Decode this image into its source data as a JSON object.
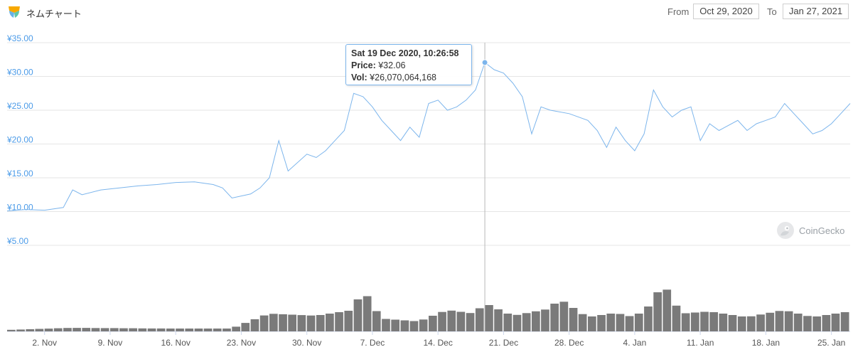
{
  "header": {
    "title": "ネムチャート",
    "from_label": "From",
    "from_value": "Oct 29, 2020",
    "to_label": "To",
    "to_value": "Jan 27, 2021"
  },
  "tooltip": {
    "date": "Sat 19 Dec 2020, 10:26:58",
    "price_label": "Price:",
    "price_value": "¥32.06",
    "vol_label": "Vol:",
    "vol_value": "¥26,070,064,168"
  },
  "watermark": {
    "text": "CoinGecko"
  },
  "colors": {
    "price_line": "#7cb5ec",
    "volume": "#7a7a7a",
    "axis_text": "#4c9be8",
    "grid": "#e6e6e6"
  },
  "chart_data": {
    "type": "line",
    "y_ticks": [
      "¥5.00",
      "¥10.00",
      "¥15.00",
      "¥20.00",
      "¥25.00",
      "¥30.00",
      "¥35.00"
    ],
    "y_tick_values": [
      5,
      10,
      15,
      20,
      25,
      30,
      35
    ],
    "ylim": [
      5,
      35
    ],
    "x_ticks": [
      "2. Nov",
      "9. Nov",
      "16. Nov",
      "23. Nov",
      "30. Nov",
      "7. Dec",
      "14. Dec",
      "21. Dec",
      "28. Dec",
      "4. Jan",
      "11. Jan",
      "18. Jan",
      "25. Jan"
    ],
    "x_tick_days": [
      "2020-11-02",
      "2020-11-09",
      "2020-11-16",
      "2020-11-23",
      "2020-11-30",
      "2020-12-07",
      "2020-12-14",
      "2020-12-21",
      "2020-12-28",
      "2021-01-04",
      "2021-01-11",
      "2021-01-18",
      "2021-01-25"
    ],
    "xlim": [
      "2020-10-29",
      "2021-01-27"
    ],
    "price_series": {
      "x": [
        "2020-10-29",
        "2020-10-31",
        "2020-11-02",
        "2020-11-04",
        "2020-11-05",
        "2020-11-06",
        "2020-11-08",
        "2020-11-10",
        "2020-11-12",
        "2020-11-14",
        "2020-11-16",
        "2020-11-18",
        "2020-11-20",
        "2020-11-21",
        "2020-11-22",
        "2020-11-24",
        "2020-11-25",
        "2020-11-26",
        "2020-11-27",
        "2020-11-28",
        "2020-11-30",
        "2020-12-01",
        "2020-12-02",
        "2020-12-03",
        "2020-12-04",
        "2020-12-05",
        "2020-12-06",
        "2020-12-07",
        "2020-12-08",
        "2020-12-09",
        "2020-12-10",
        "2020-12-11",
        "2020-12-12",
        "2020-12-13",
        "2020-12-14",
        "2020-12-15",
        "2020-12-16",
        "2020-12-17",
        "2020-12-18",
        "2020-12-19",
        "2020-12-20",
        "2020-12-21",
        "2020-12-22",
        "2020-12-23",
        "2020-12-24",
        "2020-12-25",
        "2020-12-26",
        "2020-12-28",
        "2020-12-30",
        "2020-12-31",
        "2021-01-01",
        "2021-01-02",
        "2021-01-03",
        "2021-01-04",
        "2021-01-05",
        "2021-01-06",
        "2021-01-07",
        "2021-01-08",
        "2021-01-09",
        "2021-01-10",
        "2021-01-11",
        "2021-01-12",
        "2021-01-13",
        "2021-01-15",
        "2021-01-16",
        "2021-01-17",
        "2021-01-18",
        "2021-01-19",
        "2021-01-20",
        "2021-01-21",
        "2021-01-22",
        "2021-01-23",
        "2021-01-24",
        "2021-01-25",
        "2021-01-26",
        "2021-01-27"
      ],
      "y": [
        10.1,
        10.3,
        10.2,
        10.6,
        13.2,
        12.5,
        13.2,
        13.5,
        13.8,
        14.0,
        14.3,
        14.4,
        14.0,
        13.5,
        12.0,
        12.6,
        13.5,
        15.0,
        20.5,
        16.0,
        18.5,
        18.0,
        19.0,
        20.5,
        22.0,
        27.5,
        27.0,
        25.5,
        23.5,
        22.0,
        20.5,
        22.5,
        21.0,
        26.0,
        26.5,
        25.0,
        25.5,
        26.5,
        28.0,
        32.06,
        31.0,
        30.5,
        29.0,
        27.0,
        21.5,
        25.5,
        25.0,
        24.5,
        23.5,
        22.0,
        19.5,
        22.5,
        20.5,
        19.0,
        21.5,
        28.0,
        25.5,
        24.0,
        25.0,
        25.5,
        20.5,
        23.0,
        22.0,
        23.5,
        22.0,
        23.0,
        23.5,
        24.0,
        26.0,
        24.5,
        23.0,
        21.5,
        22.0,
        23.0,
        24.5,
        26.0
      ]
    },
    "volume_series": {
      "name": "Vol",
      "x": [
        "2020-10-29",
        "2020-11-05",
        "2020-11-15",
        "2020-11-22",
        "2020-11-26",
        "2020-12-01",
        "2020-12-05",
        "2020-12-06",
        "2020-12-08",
        "2020-12-12",
        "2020-12-15",
        "2020-12-18",
        "2020-12-19",
        "2020-12-22",
        "2020-12-26",
        "2020-12-27",
        "2020-12-30",
        "2021-01-02",
        "2021-01-04",
        "2021-01-06",
        "2021-01-07",
        "2021-01-09",
        "2021-01-12",
        "2021-01-16",
        "2021-01-20",
        "2021-01-23",
        "2021-01-27"
      ],
      "y": [
        2,
        5,
        4,
        4,
        25,
        22,
        30,
        60,
        18,
        14,
        30,
        25,
        40,
        22,
        32,
        46,
        20,
        26,
        20,
        40,
        70,
        25,
        28,
        20,
        30,
        20,
        28
      ],
      "ylim": [
        0,
        100
      ]
    },
    "crosshair_x": "2020-12-19"
  }
}
